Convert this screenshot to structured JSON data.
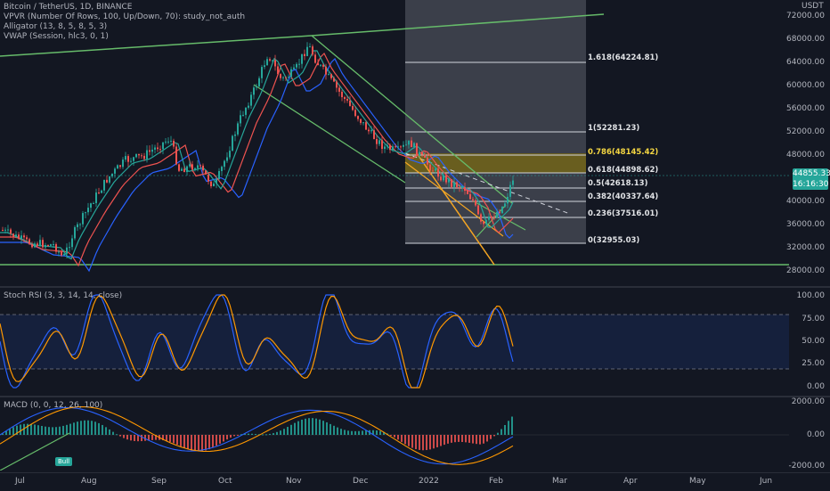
{
  "header": {
    "symbol": "Bitcoin / TetherUS, 1D, BINANCE",
    "indicators": [
      "VPVR (Number Of Rows, 100, Up/Down, 70): study_not_auth",
      "Alligator (13, 8, 5, 8, 5, 3)",
      "VWAP (Session, hlc3, 0, 1)"
    ]
  },
  "price_axis": {
    "currency": "USDT",
    "ticks": [
      "72000.00",
      "68000.00",
      "64000.00",
      "60000.00",
      "56000.00",
      "52000.00",
      "48000.00",
      "44000.00",
      "40000.00",
      "36000.00",
      "32000.00",
      "28000.00"
    ],
    "last_price": "44855.33",
    "countdown": "16:16:30"
  },
  "fib_levels": [
    {
      "label": "1.618(64224.81)",
      "color": "#e1e3e6"
    },
    {
      "label": "1(52281.23)",
      "color": "#e1e3e6"
    },
    {
      "label": "0.786(48145.42)",
      "color": "#f5d742"
    },
    {
      "label": "0.618(44898.62)",
      "color": "#e1e3e6"
    },
    {
      "label": "0.5(42618.13)",
      "color": "#e1e3e6"
    },
    {
      "label": "0.382(40337.64)",
      "color": "#e1e3e6"
    },
    {
      "label": "0.236(37516.01)",
      "color": "#e1e3e6"
    },
    {
      "label": "0(32955.03)",
      "color": "#e1e3e6"
    }
  ],
  "stoch_rsi": {
    "label": "Stoch RSI (3, 3, 14, 14, close)",
    "ticks": [
      "100.00",
      "75.00",
      "50.00",
      "25.00",
      "0.00"
    ]
  },
  "macd": {
    "label": "MACD (0, 0, 12, 26, 100)",
    "ticks": [
      "2000.00",
      "0.00",
      "-2000.00"
    ],
    "bull_tag": "Bull"
  },
  "time_axis": [
    "Jul",
    "Aug",
    "Sep",
    "Oct",
    "Nov",
    "Dec",
    "2022",
    "Feb",
    "Mar",
    "Apr",
    "May",
    "Jun"
  ],
  "colors": {
    "background": "#131722",
    "up_candle": "#26a69a",
    "down_candle": "#ef5350",
    "trendline": "#66bb6a",
    "wedge": "#f5a623"
  }
}
